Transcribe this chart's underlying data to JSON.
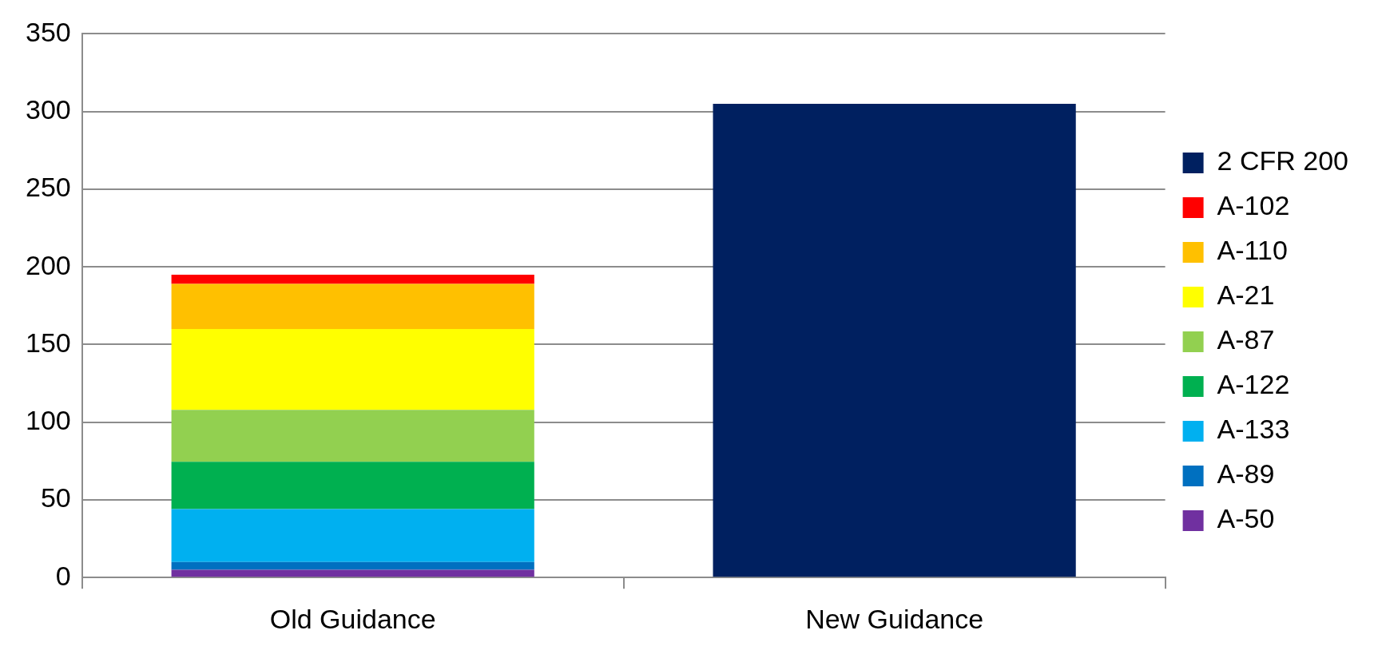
{
  "chart_data": {
    "type": "bar",
    "stacked": true,
    "categories": [
      "Old Guidance",
      "New Guidance"
    ],
    "series": [
      {
        "name": "A-50",
        "color": "#7030a0",
        "values": [
          5,
          null
        ]
      },
      {
        "name": "A-89",
        "color": "#0070c0",
        "values": [
          5,
          null
        ]
      },
      {
        "name": "A-133",
        "color": "#00b0f0",
        "values": [
          34,
          null
        ]
      },
      {
        "name": "A-122",
        "color": "#00b050",
        "values": [
          30.5,
          null
        ]
      },
      {
        "name": "A-87",
        "color": "#92d050",
        "values": [
          33.5,
          null
        ]
      },
      {
        "name": "A-21",
        "color": "#ffff00",
        "values": [
          52,
          null
        ]
      },
      {
        "name": "A-110",
        "color": "#ffc000",
        "values": [
          29,
          null
        ]
      },
      {
        "name": "A-102",
        "color": "#ff0000",
        "values": [
          6,
          null
        ]
      },
      {
        "name": "2 CFR 200",
        "color": "#002060",
        "values": [
          null,
          305
        ]
      }
    ],
    "ylim": [
      0,
      350
    ],
    "yticks": [
      0,
      50,
      100,
      150,
      200,
      250,
      300,
      350
    ],
    "grid": "y",
    "legend": "right"
  }
}
